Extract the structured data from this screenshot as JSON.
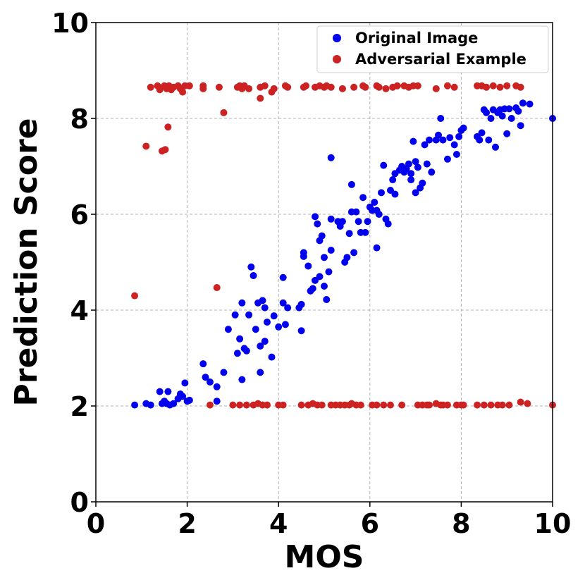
{
  "chart_data": {
    "type": "scatter",
    "title": "",
    "xlabel": "MOS",
    "ylabel": "Prediction Score",
    "xlim": [
      0,
      10
    ],
    "ylim": [
      0,
      10
    ],
    "xticks": [
      "0",
      "2",
      "4",
      "6",
      "8",
      "10"
    ],
    "yticks": [
      "0",
      "2",
      "4",
      "6",
      "8",
      "10"
    ],
    "grid": true,
    "legend_position": "top-right",
    "series": [
      {
        "name": "Original Image",
        "color": "#0000ee",
        "points": [
          [
            0.85,
            2.02
          ],
          [
            1.1,
            2.05
          ],
          [
            1.2,
            2.02
          ],
          [
            1.4,
            2.3
          ],
          [
            1.45,
            2.05
          ],
          [
            1.5,
            2.1
          ],
          [
            1.55,
            2.05
          ],
          [
            1.58,
            2.3
          ],
          [
            1.62,
            2.02
          ],
          [
            1.7,
            2.05
          ],
          [
            1.8,
            2.15
          ],
          [
            1.85,
            2.25
          ],
          [
            1.9,
            2.2
          ],
          [
            1.95,
            2.48
          ],
          [
            2.0,
            2.1
          ],
          [
            2.05,
            2.12
          ],
          [
            2.35,
            2.88
          ],
          [
            2.4,
            2.6
          ],
          [
            2.5,
            2.5
          ],
          [
            2.65,
            2.4
          ],
          [
            2.65,
            2.1
          ],
          [
            2.8,
            2.7
          ],
          [
            2.9,
            3.6
          ],
          [
            3.05,
            3.9
          ],
          [
            3.1,
            3.1
          ],
          [
            3.15,
            3.4
          ],
          [
            3.2,
            2.55
          ],
          [
            3.2,
            4.15
          ],
          [
            3.25,
            3.2
          ],
          [
            3.3,
            3.15
          ],
          [
            3.35,
            3.9
          ],
          [
            3.4,
            4.9
          ],
          [
            3.45,
            4.72
          ],
          [
            3.5,
            3.6
          ],
          [
            3.55,
            4.15
          ],
          [
            3.6,
            2.7
          ],
          [
            3.6,
            3.25
          ],
          [
            3.65,
            4.2
          ],
          [
            3.7,
            3.35
          ],
          [
            3.7,
            4.05
          ],
          [
            3.75,
            3.75
          ],
          [
            3.85,
            3.02
          ],
          [
            3.9,
            3.88
          ],
          [
            4.0,
            3.65
          ],
          [
            4.1,
            4.15
          ],
          [
            4.1,
            4.68
          ],
          [
            4.15,
            3.7
          ],
          [
            4.2,
            4.05
          ],
          [
            4.45,
            4.05
          ],
          [
            4.5,
            4.12
          ],
          [
            4.5,
            3.57
          ],
          [
            4.55,
            5.12
          ],
          [
            4.55,
            5.2
          ],
          [
            4.65,
            4.92
          ],
          [
            4.7,
            4.4
          ],
          [
            4.75,
            4.45
          ],
          [
            4.8,
            5.95
          ],
          [
            4.8,
            4.62
          ],
          [
            4.85,
            5.8
          ],
          [
            4.9,
            5.45
          ],
          [
            4.9,
            4.7
          ],
          [
            4.95,
            5.55
          ],
          [
            5.0,
            4.5
          ],
          [
            5.0,
            5.1
          ],
          [
            5.05,
            4.22
          ],
          [
            5.1,
            4.8
          ],
          [
            5.15,
            5.25
          ],
          [
            5.15,
            5.9
          ],
          [
            5.15,
            7.18
          ],
          [
            5.3,
            5.85
          ],
          [
            5.35,
            5.75
          ],
          [
            5.4,
            5.85
          ],
          [
            5.45,
            5.0
          ],
          [
            5.5,
            5.1
          ],
          [
            5.55,
            5.6
          ],
          [
            5.6,
            6.05
          ],
          [
            5.6,
            6.62
          ],
          [
            5.65,
            5.2
          ],
          [
            5.7,
            6.05
          ],
          [
            5.75,
            5.85
          ],
          [
            5.8,
            5.62
          ],
          [
            5.85,
            6.35
          ],
          [
            5.9,
            5.62
          ],
          [
            5.95,
            5.85
          ],
          [
            6.0,
            6.15
          ],
          [
            6.05,
            6.08
          ],
          [
            6.1,
            6.25
          ],
          [
            6.15,
            6.08
          ],
          [
            6.15,
            5.3
          ],
          [
            6.2,
            6.0
          ],
          [
            6.25,
            6.45
          ],
          [
            6.3,
            7.02
          ],
          [
            6.35,
            5.9
          ],
          [
            6.4,
            5.8
          ],
          [
            6.45,
            6.5
          ],
          [
            6.5,
            6.72
          ],
          [
            6.55,
            6.85
          ],
          [
            6.55,
            6.42
          ],
          [
            6.65,
            6.92
          ],
          [
            6.7,
            7.0
          ],
          [
            6.75,
            6.88
          ],
          [
            6.8,
            6.95
          ],
          [
            6.85,
            7.05
          ],
          [
            6.9,
            6.72
          ],
          [
            6.9,
            6.85
          ],
          [
            6.95,
            7.52
          ],
          [
            7.0,
            6.45
          ],
          [
            7.0,
            7.1
          ],
          [
            7.05,
            6.98
          ],
          [
            7.1,
            6.55
          ],
          [
            7.15,
            6.65
          ],
          [
            7.2,
            7.45
          ],
          [
            7.25,
            7.05
          ],
          [
            7.3,
            7.55
          ],
          [
            7.35,
            6.88
          ],
          [
            7.45,
            7.55
          ],
          [
            7.5,
            7.65
          ],
          [
            7.55,
            8.0
          ],
          [
            7.6,
            7.55
          ],
          [
            7.7,
            7.15
          ],
          [
            7.75,
            7.6
          ],
          [
            7.85,
            7.45
          ],
          [
            7.9,
            7.25
          ],
          [
            7.95,
            7.62
          ],
          [
            8.0,
            7.75
          ],
          [
            8.05,
            7.8
          ],
          [
            8.35,
            7.62
          ],
          [
            8.4,
            7.55
          ],
          [
            8.45,
            7.7
          ],
          [
            8.5,
            8.18
          ],
          [
            8.55,
            8.12
          ],
          [
            8.6,
            7.55
          ],
          [
            8.65,
            8.0
          ],
          [
            8.7,
            8.18
          ],
          [
            8.75,
            7.4
          ],
          [
            8.8,
            8.12
          ],
          [
            8.85,
            8.18
          ],
          [
            8.9,
            8.05
          ],
          [
            8.95,
            8.2
          ],
          [
            9.0,
            7.68
          ],
          [
            9.05,
            8.2
          ],
          [
            9.1,
            8.0
          ],
          [
            9.2,
            8.22
          ],
          [
            9.25,
            8.15
          ],
          [
            9.3,
            7.85
          ],
          [
            9.35,
            8.32
          ],
          [
            9.5,
            8.3
          ],
          [
            10.0,
            8.0
          ]
        ]
      },
      {
        "name": "Adversarial Example",
        "color": "#cc2222",
        "points": [
          [
            0.85,
            4.3
          ],
          [
            1.1,
            7.42
          ],
          [
            1.2,
            8.65
          ],
          [
            1.35,
            8.68
          ],
          [
            1.4,
            8.6
          ],
          [
            1.45,
            7.32
          ],
          [
            1.5,
            8.68
          ],
          [
            1.52,
            7.35
          ],
          [
            1.55,
            8.62
          ],
          [
            1.58,
            7.82
          ],
          [
            1.6,
            8.68
          ],
          [
            1.65,
            8.6
          ],
          [
            1.7,
            8.65
          ],
          [
            1.8,
            8.68
          ],
          [
            1.85,
            8.62
          ],
          [
            1.9,
            8.55
          ],
          [
            1.95,
            8.68
          ],
          [
            2.05,
            8.68
          ],
          [
            2.35,
            8.62
          ],
          [
            2.35,
            8.68
          ],
          [
            2.5,
            2.02
          ],
          [
            2.65,
            4.47
          ],
          [
            2.7,
            8.65
          ],
          [
            2.8,
            8.12
          ],
          [
            3.0,
            2.02
          ],
          [
            3.15,
            2.02
          ],
          [
            3.1,
            8.65
          ],
          [
            3.15,
            8.68
          ],
          [
            3.2,
            8.62
          ],
          [
            3.25,
            8.68
          ],
          [
            3.3,
            2.02
          ],
          [
            3.35,
            8.62
          ],
          [
            3.45,
            2.02
          ],
          [
            3.55,
            2.05
          ],
          [
            3.6,
            8.42
          ],
          [
            3.6,
            8.65
          ],
          [
            3.65,
            2.02
          ],
          [
            3.75,
            2.02
          ],
          [
            3.7,
            8.68
          ],
          [
            3.85,
            8.55
          ],
          [
            3.9,
            8.62
          ],
          [
            4.0,
            2.02
          ],
          [
            4.1,
            2.02
          ],
          [
            4.15,
            8.68
          ],
          [
            4.2,
            8.65
          ],
          [
            4.5,
            2.02
          ],
          [
            4.55,
            8.65
          ],
          [
            4.6,
            8.68
          ],
          [
            4.65,
            2.02
          ],
          [
            4.75,
            2.05
          ],
          [
            4.8,
            8.65
          ],
          [
            4.85,
            2.02
          ],
          [
            4.9,
            8.68
          ],
          [
            4.95,
            2.02
          ],
          [
            5.0,
            8.65
          ],
          [
            5.05,
            8.68
          ],
          [
            5.15,
            2.02
          ],
          [
            5.15,
            8.65
          ],
          [
            5.25,
            2.02
          ],
          [
            5.35,
            2.02
          ],
          [
            5.4,
            8.62
          ],
          [
            5.45,
            2.02
          ],
          [
            5.55,
            2.02
          ],
          [
            5.6,
            2.05
          ],
          [
            5.65,
            8.65
          ],
          [
            5.7,
            2.02
          ],
          [
            5.8,
            2.02
          ],
          [
            5.85,
            8.68
          ],
          [
            5.9,
            8.65
          ],
          [
            6.05,
            2.02
          ],
          [
            6.15,
            2.02
          ],
          [
            6.15,
            8.68
          ],
          [
            6.2,
            8.65
          ],
          [
            6.3,
            2.02
          ],
          [
            6.35,
            8.62
          ],
          [
            6.45,
            2.02
          ],
          [
            6.5,
            8.65
          ],
          [
            6.6,
            8.68
          ],
          [
            6.7,
            2.02
          ],
          [
            6.75,
            8.68
          ],
          [
            6.85,
            8.65
          ],
          [
            6.95,
            8.68
          ],
          [
            7.05,
            2.02
          ],
          [
            7.05,
            8.68
          ],
          [
            7.15,
            2.02
          ],
          [
            7.25,
            2.02
          ],
          [
            7.3,
            2.02
          ],
          [
            7.45,
            2.05
          ],
          [
            7.45,
            8.62
          ],
          [
            7.55,
            2.02
          ],
          [
            7.6,
            2.02
          ],
          [
            7.7,
            2.02
          ],
          [
            7.7,
            8.68
          ],
          [
            7.85,
            8.65
          ],
          [
            7.9,
            2.02
          ],
          [
            8.0,
            2.02
          ],
          [
            8.05,
            2.02
          ],
          [
            8.35,
            2.02
          ],
          [
            8.35,
            8.68
          ],
          [
            8.45,
            8.68
          ],
          [
            8.5,
            2.02
          ],
          [
            8.55,
            8.65
          ],
          [
            8.65,
            2.02
          ],
          [
            8.7,
            8.68
          ],
          [
            8.8,
            2.02
          ],
          [
            8.85,
            8.65
          ],
          [
            8.9,
            2.02
          ],
          [
            9.0,
            8.68
          ],
          [
            9.05,
            2.02
          ],
          [
            9.2,
            8.68
          ],
          [
            9.3,
            2.08
          ],
          [
            9.3,
            8.65
          ],
          [
            9.45,
            2.05
          ],
          [
            10.0,
            2.02
          ]
        ]
      }
    ]
  }
}
